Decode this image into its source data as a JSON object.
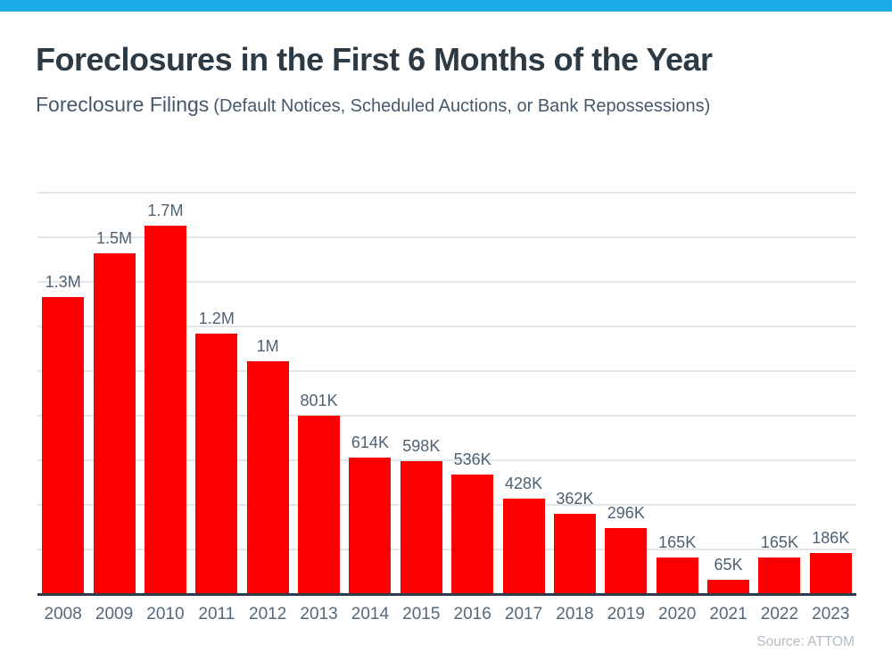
{
  "accent": {
    "top_bar_color": "#1BA9E8"
  },
  "header": {
    "title": "Foreclosures in the First 6 Months of the Year",
    "subtitle_main": "Foreclosure Filings",
    "subtitle_detail": "(Default Notices, Scheduled Auctions, or Bank Repossessions)"
  },
  "chart_data": {
    "type": "bar",
    "title": "Foreclosures in the First 6 Months of the Year",
    "subtitle": "Foreclosure Filings (Default Notices, Scheduled Auctions, or Bank Repossessions)",
    "categories": [
      "2008",
      "2009",
      "2010",
      "2011",
      "2012",
      "2013",
      "2014",
      "2015",
      "2016",
      "2017",
      "2018",
      "2019",
      "2020",
      "2021",
      "2022",
      "2023"
    ],
    "values_thousands": [
      1332,
      1528,
      1654,
      1170,
      1046,
      801,
      614,
      598,
      536,
      428,
      362,
      296,
      165,
      65,
      165,
      186
    ],
    "value_labels": [
      "1.3M",
      "1.5M",
      "1.7M",
      "1.2M",
      "1M",
      "801K",
      "614K",
      "598K",
      "536K",
      "428K",
      "362K",
      "296K",
      "165K",
      "65K",
      "165K",
      "186K"
    ],
    "xlabel": "",
    "ylabel": "",
    "ylim_thousands": [
      0,
      1800
    ],
    "gridline_interval_thousands": 200,
    "grid": true,
    "legend_position": "none",
    "y_axis_tick_labels_visible": false,
    "bar_color": "#FB0000",
    "gridline_color": "#E2E5E9",
    "axis_line_color": "#2E3D49",
    "value_label_color": "#4E6173",
    "tick_label_color": "#54687A"
  },
  "footer": {
    "source": "Source: ATTOM"
  }
}
